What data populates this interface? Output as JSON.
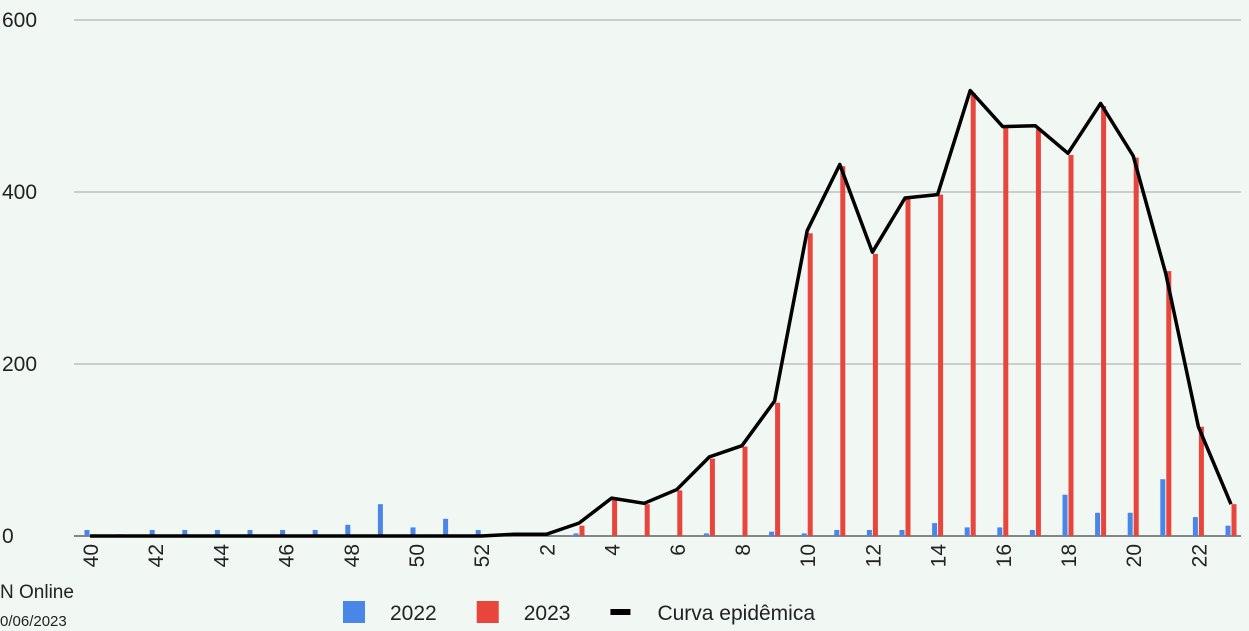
{
  "chart_data": {
    "type": "bar_line",
    "categories": [
      "40",
      null,
      "42",
      null,
      "44",
      null,
      "46",
      null,
      "48",
      null,
      "50",
      null,
      "52",
      null,
      "2",
      null,
      "4",
      null,
      "6",
      null,
      "8",
      null,
      "10",
      null,
      "12",
      null,
      "14",
      null,
      "16",
      null,
      "18",
      null,
      "20",
      null,
      "22",
      null
    ],
    "series": [
      {
        "name": "2022",
        "color": "#4a86e8",
        "kind": "bar",
        "values": [
          7,
          2,
          7,
          7,
          7,
          7,
          7,
          7,
          13,
          37,
          10,
          20,
          7,
          0,
          0,
          3,
          0,
          0,
          0,
          3,
          0,
          5,
          3,
          7,
          7,
          7,
          15,
          10,
          10,
          7,
          48,
          27,
          27,
          66,
          22,
          12
        ]
      },
      {
        "name": "2023",
        "color": "#e8453c",
        "kind": "bar",
        "values": [
          0,
          0,
          0,
          0,
          0,
          0,
          0,
          0,
          0,
          0,
          0,
          0,
          0,
          0,
          0,
          12,
          42,
          37,
          53,
          90,
          104,
          155,
          352,
          430,
          328,
          393,
          397,
          515,
          475,
          473,
          443,
          500,
          440,
          308,
          127,
          37
        ]
      },
      {
        "name": "Curva epidêmica",
        "color": "#000000",
        "kind": "line",
        "values": [
          0,
          0,
          0,
          0,
          0,
          0,
          0,
          0,
          0,
          0,
          0,
          0,
          0,
          2,
          2,
          15,
          44,
          38,
          54,
          92,
          105,
          157,
          355,
          432,
          330,
          393,
          397,
          518,
          476,
          477,
          445,
          503,
          442,
          305,
          127,
          37
        ]
      }
    ],
    "ylim": [
      0,
      600
    ],
    "yticks": [
      0,
      200,
      400,
      600
    ],
    "grid": true,
    "source": [
      "N Online",
      "0/06/2023"
    ]
  }
}
